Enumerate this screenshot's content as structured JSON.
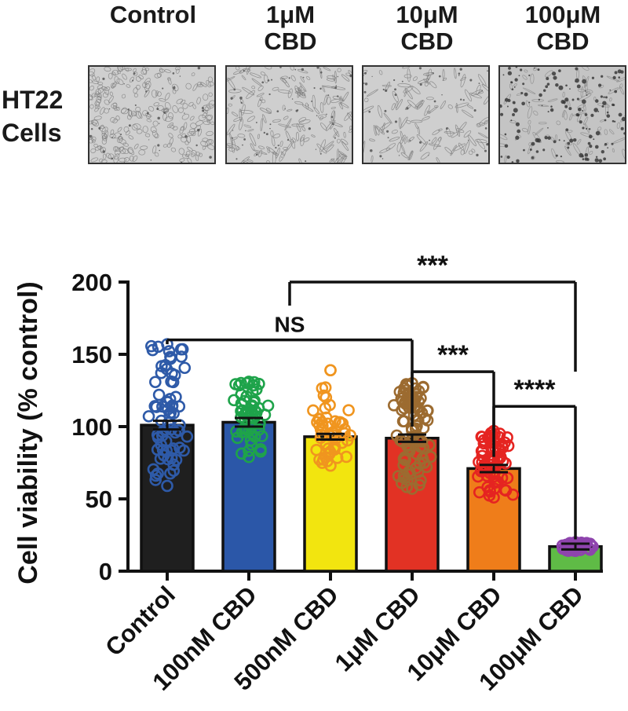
{
  "micrographs": {
    "row_label": [
      "HT22",
      "Cells"
    ],
    "columns": [
      {
        "lines": [
          "",
          "Control"
        ],
        "texture": "dense-confluent"
      },
      {
        "lines": [
          "1μM",
          "CBD"
        ],
        "texture": "elongated"
      },
      {
        "lines": [
          "10μM",
          "CBD"
        ],
        "texture": "sparse-elongated"
      },
      {
        "lines": [
          "100μM",
          "CBD"
        ],
        "texture": "dead-debris"
      }
    ]
  },
  "chart_data": {
    "type": "bar",
    "ylabel": "Cell viability (% control)",
    "xlabel": "",
    "ylim": [
      0,
      200
    ],
    "yticks": [
      0,
      50,
      100,
      150,
      200
    ],
    "categories": [
      "Control",
      "100nM CBD",
      "500nM CBD",
      "1μM CBD",
      "10μM CBD",
      "100μM CBD"
    ],
    "values": [
      101,
      103,
      93,
      92,
      71,
      17
    ],
    "sem": [
      3,
      3,
      2,
      2.5,
      2.5,
      2
    ],
    "bar_colors": [
      "#1f1f1f",
      "#2b57a8",
      "#f2e50f",
      "#e23224",
      "#ef7d1a",
      "#5fbb46"
    ],
    "point_colors": [
      "#2e5aa8",
      "#1ea34a",
      "#f0951f",
      "#9c6b30",
      "#e52421",
      "#8e44ad"
    ],
    "points": [
      {
        "n": 70,
        "min": 59,
        "max": 157,
        "q": [
          62,
          70,
          80,
          90,
          100,
          110,
          120,
          135,
          145,
          157
        ]
      },
      {
        "n": 55,
        "min": 79,
        "max": 131,
        "q": [
          80,
          88,
          95,
          100,
          105,
          110,
          115,
          122,
          128,
          131
        ]
      },
      {
        "n": 50,
        "min": 73,
        "max": 139,
        "q": [
          74,
          80,
          86,
          90,
          94,
          98,
          102,
          108,
          115,
          139
        ]
      },
      {
        "n": 90,
        "min": 57,
        "max": 130,
        "q": [
          58,
          66,
          75,
          85,
          92,
          100,
          108,
          116,
          124,
          130
        ]
      },
      {
        "n": 75,
        "min": 51,
        "max": 97,
        "q": [
          52,
          58,
          63,
          67,
          71,
          75,
          80,
          85,
          91,
          97
        ]
      },
      {
        "n": 40,
        "min": 14,
        "max": 20,
        "q": [
          14,
          15,
          16,
          16.5,
          17,
          17.5,
          18,
          18.5,
          19,
          20
        ]
      }
    ],
    "comparisons": [
      {
        "from": 0,
        "to": 3,
        "y": 160,
        "label": "NS"
      },
      {
        "from": 1.5,
        "to": 5,
        "y": 200,
        "label": "***"
      },
      {
        "from": 3,
        "to": 4,
        "y": 138,
        "label": "***"
      },
      {
        "from": 4,
        "to": 5,
        "y": 114,
        "label": "****"
      }
    ]
  }
}
